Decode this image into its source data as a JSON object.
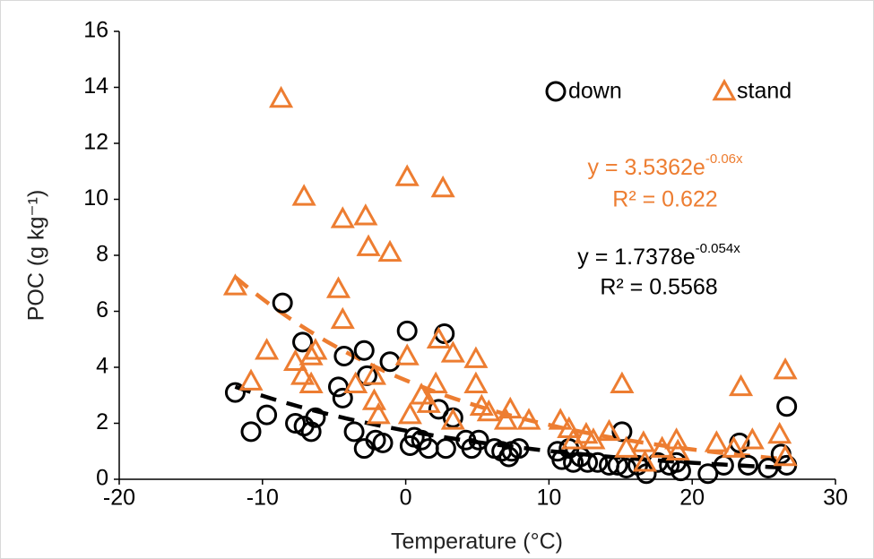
{
  "chart_data": {
    "type": "scatter",
    "x_label": "Temperature (°C)",
    "y_label": "POC (g kg⁻¹)",
    "xlim": [
      -20,
      30
    ],
    "xticks": [
      -20,
      -10,
      0,
      10,
      20,
      30
    ],
    "ylim": [
      0,
      16
    ],
    "yticks": [
      0,
      2,
      4,
      6,
      8,
      10,
      12,
      14,
      16
    ],
    "grid": false,
    "legend": "top-right",
    "series": [
      {
        "name": "down",
        "color": "#000000",
        "marker": "circle",
        "x": [
          -11.9,
          -10.8,
          -9.7,
          -8.6,
          -7.7,
          -7.2,
          -7.1,
          -6.6,
          -6.3,
          -4.3,
          -4.7,
          -4.4,
          -3.6,
          -2.9,
          -2.7,
          -2.9,
          -2.1,
          -1.6,
          -1.1,
          0.1,
          0.3,
          0.6,
          1.1,
          1.6,
          2.3,
          2.7,
          2.8,
          3.3,
          4.2,
          4.6,
          5.1,
          6.2,
          6.7,
          7.2,
          7.4,
          7.9,
          10.6,
          10.9,
          11.4,
          11.7,
          12.2,
          12.7,
          13.4,
          14.2,
          14.8,
          15.1,
          15.4,
          16.2,
          16.8,
          17.6,
          18.4,
          18.9,
          19.2,
          21.1,
          22.2,
          23.3,
          23.9,
          25.3,
          26.2,
          26.6,
          26.6
        ],
        "values": [
          3.1,
          1.7,
          2.3,
          6.3,
          2.0,
          4.9,
          1.9,
          1.7,
          2.2,
          4.4,
          3.3,
          2.9,
          1.7,
          4.6,
          3.7,
          1.1,
          1.4,
          1.3,
          4.2,
          5.3,
          1.2,
          1.5,
          1.4,
          1.1,
          2.5,
          5.2,
          1.1,
          2.2,
          1.4,
          1.1,
          1.4,
          1.1,
          1.0,
          0.8,
          1.0,
          1.1,
          1.0,
          0.7,
          1.1,
          0.6,
          0.8,
          0.6,
          0.6,
          0.5,
          0.5,
          1.7,
          0.4,
          0.5,
          0.2,
          0.6,
          0.5,
          0.6,
          0.3,
          0.2,
          0.5,
          1.3,
          0.5,
          0.4,
          0.9,
          2.6,
          0.5
        ],
        "trendline": {
          "coefficient": {
            "value": 1.7378,
            "label": "y = 1.7378e"
          },
          "exponent": {
            "value": -0.054,
            "label": "-0.054x"
          },
          "r_squared": {
            "value": 0.5568,
            "label": "R² = 0.5568"
          }
        }
      },
      {
        "name": "stand",
        "color": "#ED7D31",
        "marker": "triangle",
        "x": [
          -11.9,
          -10.8,
          -9.7,
          -8.7,
          -7.7,
          -7.2,
          -7.1,
          -6.6,
          -6.6,
          -6.3,
          -4.7,
          -4.4,
          -4.4,
          -3.5,
          -2.8,
          -2.6,
          -2.2,
          -2.2,
          -1.9,
          -1.1,
          0.1,
          0.1,
          0.3,
          1.1,
          1.6,
          2.1,
          2.3,
          2.6,
          3.3,
          3.3,
          4.9,
          4.9,
          5.3,
          5.8,
          7.0,
          7.3,
          8.6,
          10.8,
          11.4,
          11.7,
          12.6,
          13.1,
          14.2,
          15.1,
          15.4,
          16.6,
          16.7,
          17.9,
          18.9,
          19.0,
          21.7,
          22.9,
          23.4,
          24.2,
          26.1,
          26.5,
          26.5
        ],
        "values": [
          6.9,
          3.5,
          4.6,
          13.6,
          4.2,
          3.7,
          10.1,
          4.4,
          3.4,
          4.6,
          6.8,
          5.7,
          9.3,
          3.4,
          9.4,
          8.3,
          3.7,
          2.8,
          2.3,
          8.1,
          10.8,
          4.4,
          2.3,
          3.0,
          2.7,
          3.4,
          5.0,
          10.4,
          4.5,
          2.1,
          4.3,
          3.4,
          2.6,
          2.4,
          2.1,
          2.5,
          2.1,
          2.1,
          1.8,
          1.4,
          1.6,
          1.4,
          1.7,
          3.4,
          1.1,
          1.3,
          0.6,
          1.1,
          1.4,
          1.0,
          1.3,
          1.1,
          3.3,
          1.4,
          1.6,
          3.9,
          0.8
        ],
        "trendline": {
          "coefficient": {
            "value": 3.5362,
            "label": "y = 3.5362e"
          },
          "exponent": {
            "value": -0.06,
            "label": "-0.06x"
          },
          "r_squared": {
            "value": 0.622,
            "label": "R² = 0.622"
          }
        }
      }
    ]
  }
}
